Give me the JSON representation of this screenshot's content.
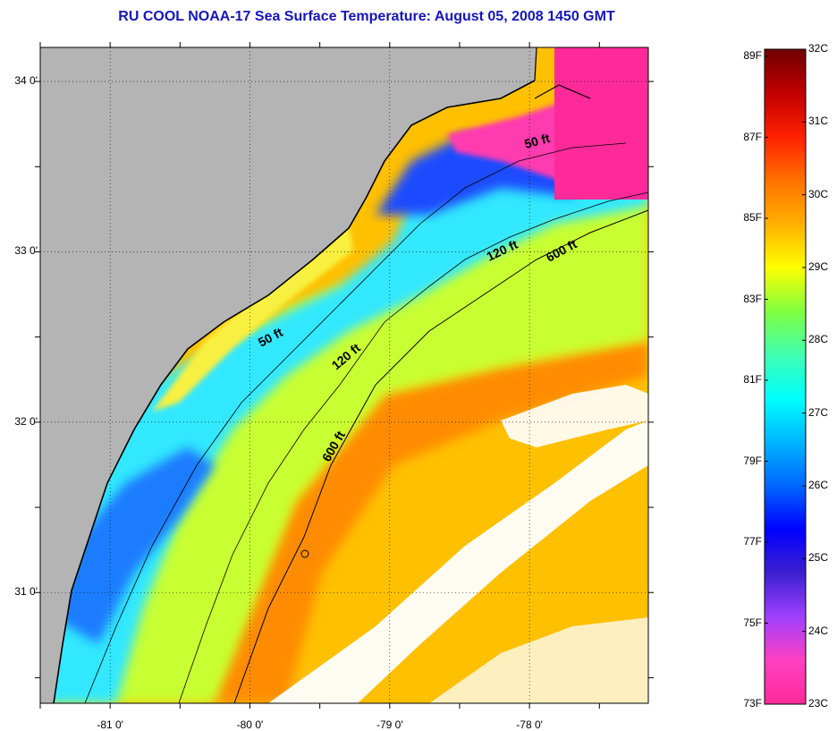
{
  "title": "RU COOL  NOAA-17  Sea Surface Temperature:  August 05, 2008 1450 GMT",
  "map": {
    "lon_range": [
      -81.5,
      -77.15
    ],
    "lat_range": [
      30.35,
      34.2
    ],
    "lat_ticks": [
      {
        "lat": 34.0,
        "label": "34 0'"
      },
      {
        "lat": 33.0,
        "label": "33 0'"
      },
      {
        "lat": 32.0,
        "label": "32 0'"
      },
      {
        "lat": 31.0,
        "label": "31 0'"
      }
    ],
    "lon_ticks": [
      {
        "lon": -81.0,
        "label": "-81 0'"
      },
      {
        "lon": -80.0,
        "label": "-80 0'"
      },
      {
        "lon": -79.0,
        "label": "-79 0'"
      },
      {
        "lon": -78.0,
        "label": "-78 0'"
      }
    ],
    "contour_labels": [
      "50 ft",
      "50 ft",
      "120 ft",
      "120 ft",
      "600 ft",
      "600 ft"
    ]
  },
  "colorbar": {
    "fahrenheit": [
      "89F",
      "87F",
      "85F",
      "83F",
      "81F",
      "79F",
      "77F",
      "75F",
      "73F"
    ],
    "celsius": [
      "32C",
      "31C",
      "30C",
      "29C",
      "28C",
      "27C",
      "26C",
      "25C",
      "24C",
      "23C"
    ],
    "colors": [
      "#ff2a9a",
      "#ff40c0",
      "#a040ff",
      "#3c20d0",
      "#0000ff",
      "#0066ff",
      "#00b4ff",
      "#00ffff",
      "#40ffb0",
      "#80ff40",
      "#ffff00",
      "#ffb000",
      "#ff7000",
      "#ff2000",
      "#c00000",
      "#700000"
    ]
  },
  "colors": {
    "land": "#b4b4b4",
    "cloud": "#ffffff",
    "title": "#1515b8"
  }
}
